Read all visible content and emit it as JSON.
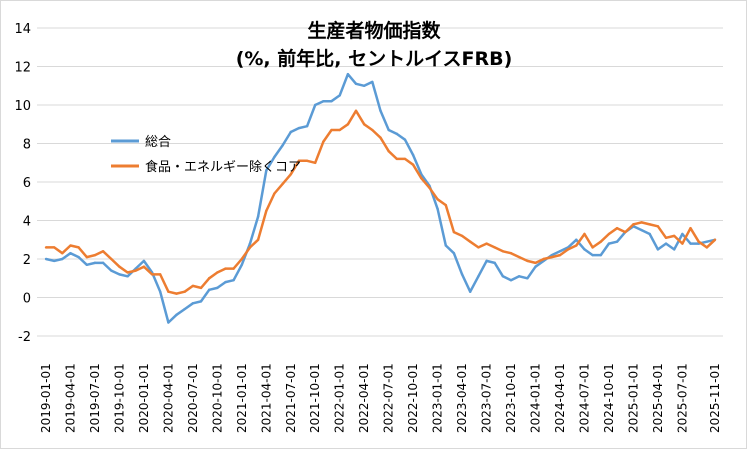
{
  "chart_data": {
    "type": "line",
    "title": "生産者物価指数",
    "subtitle": "(%, 前年比, セントルイスFRB)",
    "xlabel": "",
    "ylabel": "",
    "ylim": [
      -2,
      14
    ],
    "yticks": [
      -2,
      0,
      2,
      4,
      6,
      8,
      10,
      12,
      14
    ],
    "grid": true,
    "legend_position": "upper-left",
    "x_start": "2019-01-01",
    "x_tick_labels": [
      "2019-01-01",
      "2019-04-01",
      "2019-07-01",
      "2019-10-01",
      "2020-01-01",
      "2020-04-01",
      "2020-07-01",
      "2020-10-01",
      "2021-01-01",
      "2021-04-01",
      "2021-07-01",
      "2021-10-01",
      "2022-01-01",
      "2022-04-01",
      "2022-07-01",
      "2022-10-01",
      "2023-01-01",
      "2023-04-01",
      "2023-07-01",
      "2023-10-01",
      "2024-01-01",
      "2024-04-01",
      "2024-07-01",
      "2024-10-01",
      "2025-01-01",
      "2025-04-01",
      "2025-07-01",
      "2025-11-01"
    ],
    "series": [
      {
        "name": "総合",
        "color": "#5b9bd5",
        "values": [
          2.0,
          1.9,
          2.0,
          2.3,
          2.1,
          1.7,
          1.8,
          1.8,
          1.4,
          1.2,
          1.1,
          1.5,
          1.9,
          1.3,
          0.3,
          -1.3,
          -0.9,
          -0.6,
          -0.3,
          -0.2,
          0.4,
          0.5,
          0.8,
          0.9,
          1.7,
          2.8,
          4.2,
          6.6,
          7.3,
          7.9,
          8.6,
          8.8,
          8.9,
          10.0,
          10.2,
          10.2,
          10.5,
          11.6,
          11.1,
          11.0,
          11.2,
          9.7,
          8.7,
          8.5,
          8.2,
          7.4,
          6.4,
          5.8,
          4.6,
          2.7,
          2.3,
          1.2,
          0.3,
          1.1,
          1.9,
          1.8,
          1.1,
          0.9,
          1.1,
          1.0,
          1.6,
          1.9,
          2.2,
          2.4,
          2.6,
          3.0,
          2.5,
          2.2,
          2.2,
          2.8,
          2.9,
          3.4,
          3.7,
          3.5,
          3.3,
          2.5,
          2.8,
          2.5,
          3.3,
          2.8,
          2.8,
          2.9,
          3.0
        ]
      },
      {
        "name": "食品・エネルギー除くコア",
        "color": "#ed7d31",
        "values": [
          2.6,
          2.6,
          2.3,
          2.7,
          2.6,
          2.1,
          2.2,
          2.4,
          2.0,
          1.6,
          1.3,
          1.4,
          1.6,
          1.2,
          1.2,
          0.3,
          0.2,
          0.3,
          0.6,
          0.5,
          1.0,
          1.3,
          1.5,
          1.5,
          2.0,
          2.6,
          3.0,
          4.5,
          5.4,
          5.9,
          6.4,
          7.1,
          7.1,
          7.0,
          8.1,
          8.7,
          8.7,
          9.0,
          9.7,
          9.0,
          8.7,
          8.3,
          7.6,
          7.2,
          7.2,
          6.9,
          6.2,
          5.7,
          5.1,
          4.8,
          3.4,
          3.2,
          2.9,
          2.6,
          2.8,
          2.6,
          2.4,
          2.3,
          2.1,
          1.9,
          1.8,
          2.0,
          2.1,
          2.2,
          2.5,
          2.7,
          3.3,
          2.6,
          2.9,
          3.3,
          3.6,
          3.4,
          3.8,
          3.9,
          3.8,
          3.7,
          3.1,
          3.2,
          2.8,
          3.6,
          2.9,
          2.6,
          3.0
        ]
      }
    ]
  }
}
